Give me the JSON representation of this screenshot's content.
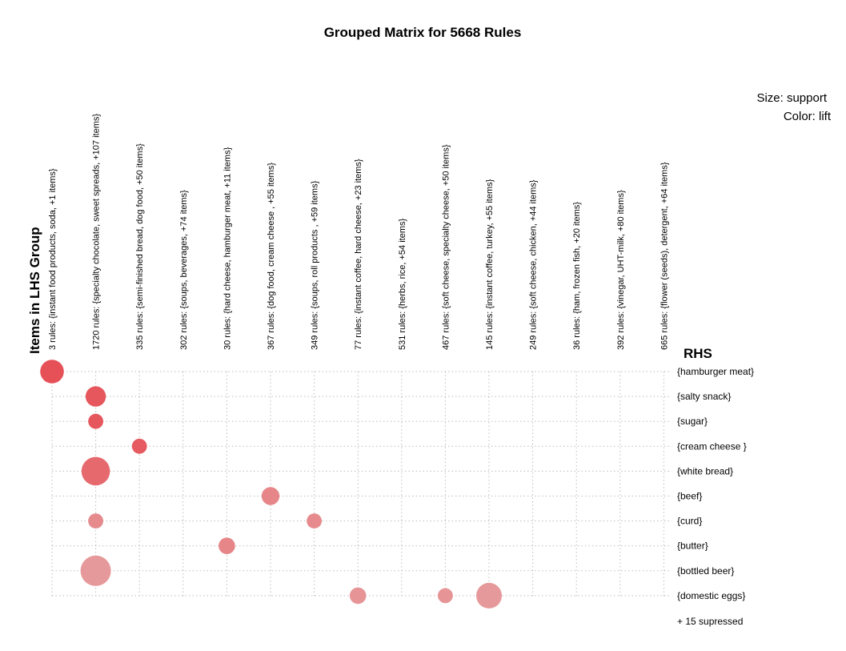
{
  "chart_data": {
    "type": "scatter",
    "title": "Grouped Matrix for 5668 Rules",
    "legend": {
      "size": "Size: support",
      "color": "Color: lift"
    },
    "ylabel": "Items in LHS Group",
    "rhs_label": "RHS",
    "grid": true,
    "lhs_groups": [
      "3 rules: {instant food products, soda, +1 items}",
      "1720 rules: {specialty chocolate, sweet spreads, +107 items}",
      "335 rules: {semi-finished bread, dog food, +50 items}",
      "302 rules: {soups, beverages, +74 items}",
      "30 rules: {hard cheese, hamburger meat, +11 items}",
      "367 rules: {dog food, cream cheese , +55 items}",
      "349 rules: {soups, roll products , +59 items}",
      "77 rules: {instant coffee, hard cheese, +23 items}",
      "531 rules: {herbs, rice, +54 items}",
      "467 rules: {soft cheese, specialty cheese, +50 items}",
      "145 rules: {instant coffee, turkey, +55 items}",
      "249 rules: {soft cheese, chicken, +44 items}",
      "36 rules: {ham, frozen fish, +20 items}",
      "392 rules: {vinegar, UHT-milk, +80 items}",
      "665 rules: {flower (seeds), detergent, +64 items}"
    ],
    "rhs_items": [
      "{hamburger meat}",
      "{salty snack}",
      "{sugar}",
      "{cream cheese }",
      "{white bread}",
      "{beef}",
      "{curd}",
      "{butter}",
      "{bottled beer}",
      "{domestic eggs}"
    ],
    "suppressed_note": "+ 15 supressed",
    "points": [
      {
        "lhs": 0,
        "rhs": 0,
        "size": 0.72,
        "lift": 0.95
      },
      {
        "lhs": 1,
        "rhs": 1,
        "size": 0.58,
        "lift": 0.9
      },
      {
        "lhs": 1,
        "rhs": 2,
        "size": 0.36,
        "lift": 0.9
      },
      {
        "lhs": 2,
        "rhs": 3,
        "size": 0.36,
        "lift": 0.85
      },
      {
        "lhs": 1,
        "rhs": 4,
        "size": 0.92,
        "lift": 0.7
      },
      {
        "lhs": 5,
        "rhs": 5,
        "size": 0.48,
        "lift": 0.4
      },
      {
        "lhs": 1,
        "rhs": 6,
        "size": 0.36,
        "lift": 0.35
      },
      {
        "lhs": 6,
        "rhs": 6,
        "size": 0.36,
        "lift": 0.35
      },
      {
        "lhs": 4,
        "rhs": 7,
        "size": 0.42,
        "lift": 0.4
      },
      {
        "lhs": 1,
        "rhs": 8,
        "size": 1.0,
        "lift": 0.2
      },
      {
        "lhs": 7,
        "rhs": 9,
        "size": 0.42,
        "lift": 0.25
      },
      {
        "lhs": 9,
        "rhs": 9,
        "size": 0.36,
        "lift": 0.25
      },
      {
        "lhs": 10,
        "rhs": 9,
        "size": 0.8,
        "lift": 0.2
      }
    ]
  }
}
